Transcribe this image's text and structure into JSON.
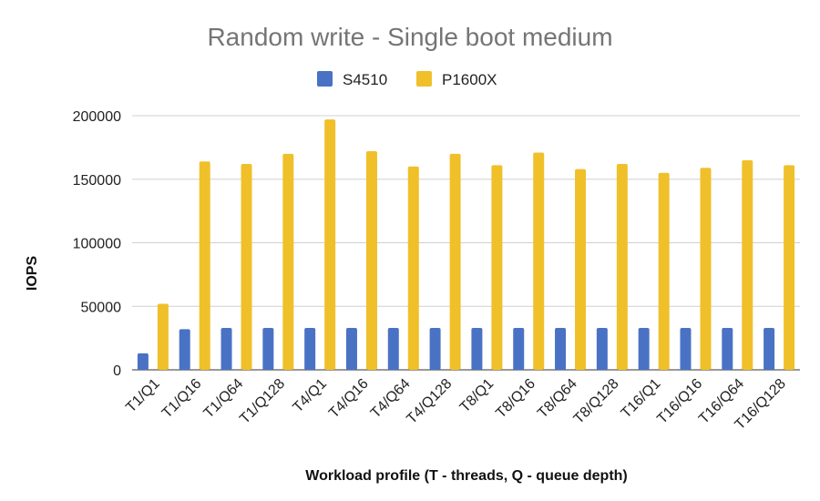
{
  "chart_data": {
    "type": "bar",
    "title": "Random write - Single boot medium",
    "xlabel": "Workload profile (T - threads, Q - queue depth)",
    "ylabel": "IOPS",
    "ylim": [
      0,
      200000
    ],
    "yticks": [
      0,
      50000,
      100000,
      150000,
      200000
    ],
    "grid": true,
    "legend_position": "top",
    "categories": [
      "T1/Q1",
      "T1/Q16",
      "T1/Q64",
      "T1/Q128",
      "T4/Q1",
      "T4/Q16",
      "T4/Q64",
      "T4/Q128",
      "T8/Q1",
      "T8/Q16",
      "T8/Q64",
      "T8/Q128",
      "T16/Q1",
      "T16/Q16",
      "T16/Q64",
      "T16/Q128"
    ],
    "series": [
      {
        "name": "S4510",
        "color": "#4a72c4",
        "values": [
          13000,
          32000,
          33000,
          33000,
          33000,
          33000,
          33000,
          33000,
          33000,
          33000,
          33000,
          33000,
          33000,
          33000,
          33000,
          33000
        ]
      },
      {
        "name": "P1600X",
        "color": "#f0c02a",
        "values": [
          52000,
          164000,
          162000,
          170000,
          197000,
          172000,
          160000,
          170000,
          161000,
          171000,
          158000,
          162000,
          155000,
          159000,
          165000,
          161000
        ]
      }
    ]
  }
}
